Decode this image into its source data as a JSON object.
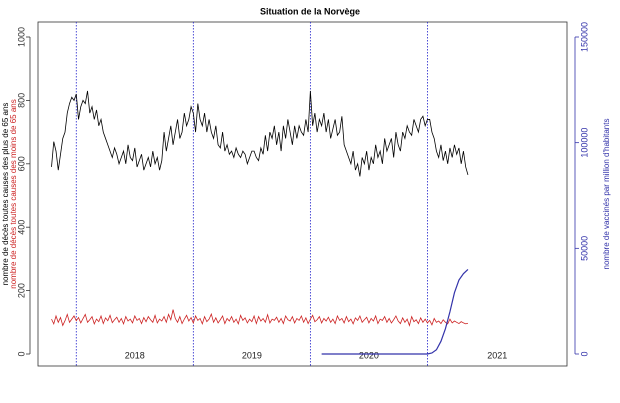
{
  "chart_data": {
    "type": "line",
    "title": "Situation de la Norvège",
    "ylabel": "nombre de décès toutes causes des plus de 65 ans",
    "ylabel_2": "nombre de décès toutes causes des moins de 65 ans",
    "y2label": "nombre de vaccinés par million d'habitants",
    "xlim": [
      -17,
      218
    ],
    "ylim": [
      0,
      1000
    ],
    "yticks": [
      0,
      200,
      400,
      600,
      800,
      1000
    ],
    "y2lim": [
      0,
      150000
    ],
    "y2ticks": [
      0,
      50000,
      100000,
      150000
    ],
    "year_lines": [
      0,
      52,
      104,
      156
    ],
    "year_labels": [
      "2018",
      "2019",
      "2020",
      "2021"
    ],
    "x": [
      -11,
      -10,
      -9,
      -8,
      -7,
      -6,
      -5,
      -4,
      -3,
      -2,
      -1,
      0,
      1,
      2,
      3,
      4,
      5,
      6,
      7,
      8,
      9,
      10,
      11,
      12,
      13,
      14,
      15,
      16,
      17,
      18,
      19,
      20,
      21,
      22,
      23,
      24,
      25,
      26,
      27,
      28,
      29,
      30,
      31,
      32,
      33,
      34,
      35,
      36,
      37,
      38,
      39,
      40,
      41,
      42,
      43,
      44,
      45,
      46,
      47,
      48,
      49,
      50,
      51,
      52,
      53,
      54,
      55,
      56,
      57,
      58,
      59,
      60,
      61,
      62,
      63,
      64,
      65,
      66,
      67,
      68,
      69,
      70,
      71,
      72,
      73,
      74,
      75,
      76,
      77,
      78,
      79,
      80,
      81,
      82,
      83,
      84,
      85,
      86,
      87,
      88,
      89,
      90,
      91,
      92,
      93,
      94,
      95,
      96,
      97,
      98,
      99,
      100,
      101,
      102,
      103,
      104,
      105,
      106,
      107,
      108,
      109,
      110,
      111,
      112,
      113,
      114,
      115,
      116,
      117,
      118,
      119,
      120,
      121,
      122,
      123,
      124,
      125,
      126,
      127,
      128,
      129,
      130,
      131,
      132,
      133,
      134,
      135,
      136,
      137,
      138,
      139,
      140,
      141,
      142,
      143,
      144,
      145,
      146,
      147,
      148,
      149,
      150,
      151,
      152,
      153,
      154,
      155,
      156,
      157,
      158,
      159,
      160,
      161,
      162,
      163,
      164,
      165,
      166,
      167,
      168,
      169,
      170,
      171,
      172,
      173,
      174
    ],
    "series": [
      {
        "name": "nombre de décès toutes causes des plus de 65 ans",
        "color": "#000000",
        "axis": "y",
        "values": [
          590,
          670,
          640,
          580,
          630,
          680,
          700,
          760,
          790,
          810,
          800,
          820,
          740,
          780,
          800,
          790,
          830,
          760,
          780,
          740,
          770,
          720,
          740,
          700,
          680,
          660,
          640,
          620,
          650,
          630,
          600,
          620,
          640,
          600,
          660,
          620,
          610,
          650,
          590,
          610,
          630,
          580,
          600,
          620,
          590,
          640,
          600,
          620,
          580,
          610,
          700,
          640,
          680,
          720,
          660,
          700,
          740,
          680,
          700,
          760,
          720,
          740,
          780,
          760,
          700,
          790,
          740,
          720,
          760,
          700,
          740,
          700,
          680,
          720,
          660,
          650,
          700,
          640,
          660,
          630,
          640,
          620,
          650,
          630,
          620,
          640,
          630,
          600,
          620,
          640,
          640,
          620,
          610,
          650,
          630,
          690,
          640,
          700,
          680,
          720,
          660,
          700,
          640,
          720,
          680,
          740,
          700,
          660,
          720,
          680,
          720,
          700,
          690,
          740,
          700,
          830,
          720,
          760,
          700,
          740,
          720,
          760,
          700,
          740,
          680,
          710,
          740,
          690,
          700,
          750,
          660,
          640,
          620,
          600,
          640,
          580,
          600,
          560,
          620,
          600,
          640,
          580,
          620,
          600,
          660,
          620,
          640,
          600,
          680,
          640,
          660,
          680,
          620,
          700,
          660,
          640,
          700,
          680,
          720,
          700,
          690,
          740,
          720,
          700,
          740,
          750,
          720,
          740,
          740,
          700,
          680,
          640,
          620,
          660,
          610,
          640,
          600,
          650,
          620,
          660,
          630,
          650,
          600,
          640,
          590,
          565
        ]
      },
      {
        "name": "nombre de décès toutes causes des moins de 65 ans",
        "color": "#cc2222",
        "axis": "y",
        "values": [
          110,
          95,
          120,
          100,
          115,
          90,
          105,
          125,
          100,
          110,
          120,
          105,
          115,
          98,
          112,
          125,
          100,
          108,
          118,
          95,
          110,
          102,
          120,
          96,
          114,
          105,
          122,
          99,
          108,
          116,
          100,
          112,
          95,
          118,
          104,
          110,
          98,
          120,
          106,
          112,
          96,
          115,
          102,
          118,
          108,
          100,
          122,
          98,
          110,
          104,
          118,
          100,
          125,
          108,
          140,
          112,
          100,
          118,
          96,
          110,
          122,
          104,
          115,
          98,
          120,
          106,
          112,
          95,
          118,
          102,
          110,
          126,
          100,
          114,
          98,
          108,
          120,
          96,
          112,
          104,
          118,
          100,
          110,
          95,
          122,
          106,
          114,
          98,
          110,
          102,
          120,
          96,
          118,
          104,
          112,
          100,
          124,
          98,
          110,
          106,
          116,
          100,
          112,
          96,
          120,
          108,
          104,
          118,
          98,
          112,
          106,
          120,
          100,
          114,
          96,
          110,
          122,
          102,
          108,
          118,
          98,
          112,
          104,
          116,
          100,
          110,
          96,
          120,
          106,
          112,
          98,
          118,
          102,
          110,
          95,
          114,
          106,
          120,
          100,
          108,
          116,
          98,
          112,
          104,
          120,
          96,
          110,
          106,
          118,
          100,
          112,
          98,
          108,
          120,
          104,
          96,
          114,
          100,
          110,
          90,
          118,
          102,
          108,
          96,
          114,
          100,
          110,
          98,
          106,
          92,
          112,
          100,
          104,
          96,
          108,
          100,
          95,
          110,
          98,
          104,
          100,
          96,
          102,
          98,
          95,
          97
        ]
      },
      {
        "name": "nombre de vaccinés par million d'habitants",
        "color": "#3333aa",
        "axis": "y2",
        "x": [
          109,
          156,
          158,
          160,
          162,
          164,
          166,
          168,
          170,
          172,
          174
        ],
        "values": [
          0,
          0,
          500,
          2000,
          6000,
          12000,
          20000,
          29000,
          35000,
          38000,
          40000
        ]
      }
    ]
  }
}
